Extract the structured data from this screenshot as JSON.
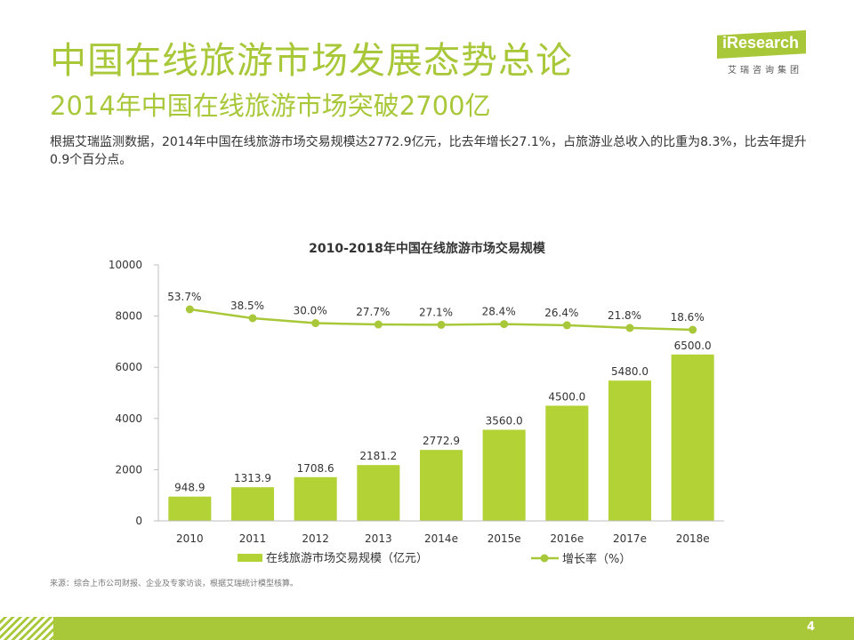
{
  "header": {
    "title": "中国在线旅游市场发展态势总论",
    "subtitle": "2014年中国在线旅游市场突破2700亿",
    "description": "根据艾瑞监测数据，2014年中国在线旅游市场交易规模达2772.9亿元，比去年增长27.1%，占旅游业总收入的比重为8.3%，比去年提升0.9个百分点。"
  },
  "logo": {
    "name": "iResearch",
    "subtitle": "艾瑞咨询集团"
  },
  "chart_data": {
    "type": "bar",
    "title": "2010-2018年中国在线旅游市场交易规模",
    "categories": [
      "2010",
      "2011",
      "2012",
      "2013",
      "2014e",
      "2015e",
      "2016e",
      "2017e",
      "2018e"
    ],
    "series": [
      {
        "name": "在线旅游市场交易规模（亿元）",
        "type": "bar",
        "values": [
          948.9,
          1313.9,
          1708.6,
          2181.2,
          2772.9,
          3560.0,
          4500.0,
          5480.0,
          6500.0
        ],
        "labels": [
          "948.9",
          "1313.9",
          "1708.6",
          "2181.2",
          "2772.9",
          "3560.0",
          "4500.0",
          "5480.0",
          "6500.0"
        ]
      },
      {
        "name": "增长率（%）",
        "type": "line",
        "values": [
          53.7,
          38.5,
          30.0,
          27.7,
          27.1,
          28.4,
          26.4,
          21.8,
          18.6
        ],
        "labels": [
          "53.7%",
          "38.5%",
          "30.0%",
          "27.7%",
          "27.1%",
          "28.4%",
          "26.4%",
          "21.8%",
          "18.6%"
        ]
      }
    ],
    "ylim": [
      0,
      10000
    ],
    "yticks": [
      "0",
      "2000",
      "4000",
      "6000",
      "8000",
      "10000"
    ],
    "grid": false,
    "legend_position": "bottom",
    "colors": {
      "bar": "#b2d235",
      "line": "#a8c83a"
    }
  },
  "footer": {
    "source": "来源：综合上市公司财报、企业及专家访谈，根据艾瑞统计模型核算。",
    "page_number": "4"
  }
}
